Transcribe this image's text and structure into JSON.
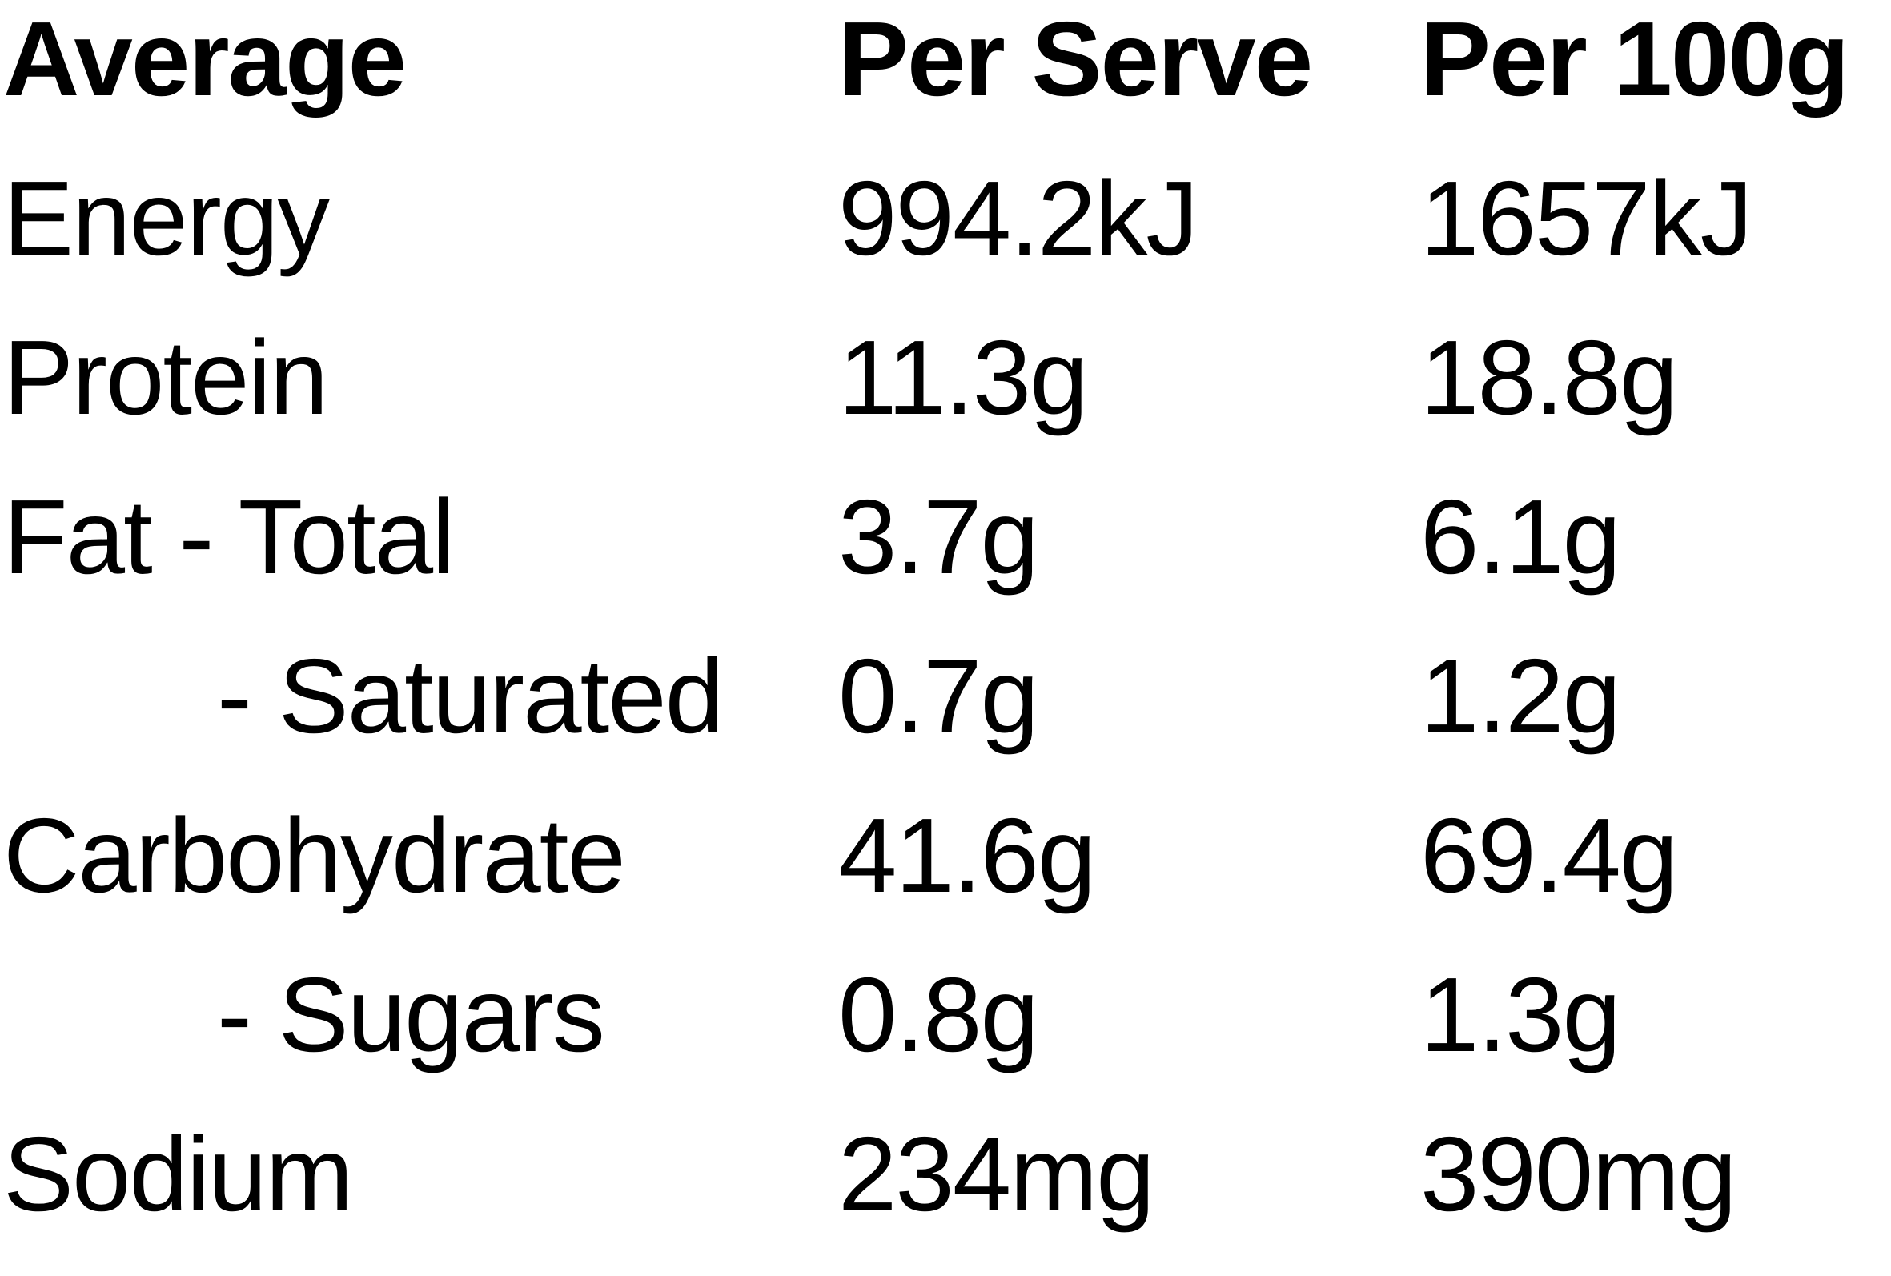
{
  "table": {
    "header": [
      "Average",
      "Per Serve",
      "Per 100g"
    ],
    "rows": [
      [
        "Energy",
        "994.2kJ",
        "1657kJ"
      ],
      [
        "Protein",
        "11.3g",
        "18.8g"
      ],
      [
        "Fat - Total",
        "3.7g",
        "6.1g"
      ],
      [
        "- Saturated",
        "0.7g",
        "1.2g"
      ],
      [
        "Carbohydrate",
        "41.6g",
        "69.4g"
      ],
      [
        "- Sugars",
        "0.8g",
        "1.3g"
      ],
      [
        "Sodium",
        "234mg",
        "390mg"
      ]
    ]
  }
}
